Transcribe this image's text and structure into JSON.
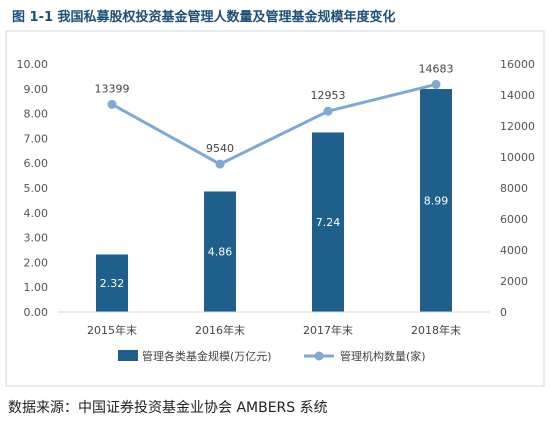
{
  "title": "图 1-1  我国私募股权投资基金管理人数量及管理基金规模年度变化",
  "source": "数据来源：中国证券投资基金业协会 AMBERS 系统",
  "colors": {
    "bar": "#1f5f8b",
    "line": "#7ea9d6",
    "axis": "#d9d9d9",
    "frame": "#cfd8e3"
  },
  "chart_data": {
    "type": "bar",
    "categories": [
      "2015年末",
      "2016年末",
      "2017年末",
      "2018年末"
    ],
    "series": [
      {
        "name": "管理各类基金规模(万亿元)",
        "type": "bar",
        "axis": "left",
        "values": [
          2.32,
          4.86,
          7.24,
          8.99
        ],
        "labels": [
          "2.32",
          "4.86",
          "7.24",
          "8.99"
        ]
      },
      {
        "name": "管理机构数量(家)",
        "type": "line",
        "axis": "right",
        "values": [
          13399,
          9540,
          12953,
          14683
        ],
        "labels": [
          "13399",
          "9540",
          "12953",
          "14683"
        ]
      }
    ],
    "y_left": {
      "range": [
        0,
        10
      ],
      "ticks": [
        "0.00",
        "1.00",
        "2.00",
        "3.00",
        "4.00",
        "5.00",
        "6.00",
        "7.00",
        "8.00",
        "9.00",
        "10.00"
      ]
    },
    "y_right": {
      "range": [
        0,
        16000
      ],
      "ticks": [
        "0",
        "2000",
        "4000",
        "6000",
        "8000",
        "10000",
        "12000",
        "14000",
        "16000"
      ]
    },
    "grid": false,
    "legend": "bottom"
  }
}
